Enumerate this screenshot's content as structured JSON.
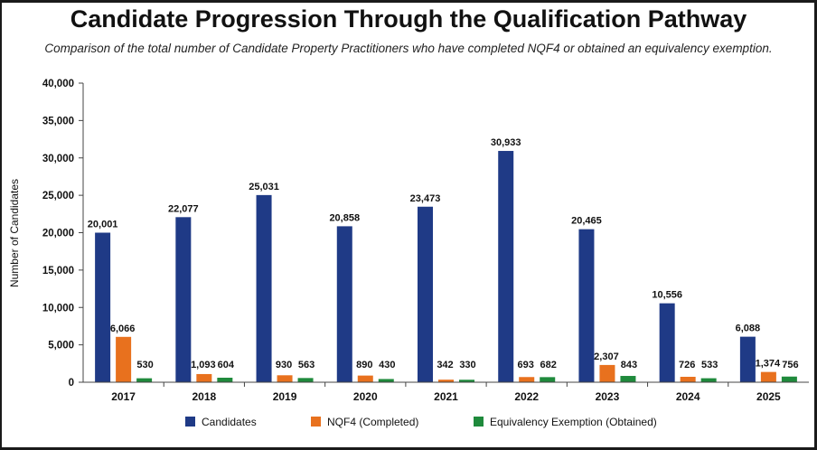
{
  "page": {
    "title": "Candidate Progression Through the Qualification Pathway",
    "subtitle": "Comparison of the total number of Candidate Property Practitioners who have completed NQF4 or obtained an equivalency exemption."
  },
  "colors": {
    "candidates": "#1F3A86",
    "nqf4": "#E8711E",
    "exemption": "#1F8A3C",
    "axis": "#444444",
    "grid": "#dddddd"
  },
  "chart_data": {
    "type": "bar",
    "title": "Candidate Progression Through the Qualification Pathway",
    "subtitle": "Comparison of the total number of Candidate Property Practitioners who have completed NQF4 or obtained an equivalency exemption.",
    "xlabel": "",
    "ylabel": "Number of Candidates",
    "ylim": [
      0,
      40000
    ],
    "yticks": [
      0,
      5000,
      10000,
      15000,
      20000,
      25000,
      30000,
      35000,
      40000
    ],
    "ytick_labels": [
      "0",
      "5,000",
      "10,000",
      "15,000",
      "20,000",
      "25,000",
      "30,000",
      "35,000",
      "40,000"
    ],
    "grid": false,
    "legend_position": "bottom",
    "categories": [
      "2017",
      "2018",
      "2019",
      "2020",
      "2021",
      "2022",
      "2023",
      "2024",
      "2025"
    ],
    "series": [
      {
        "name": "Candidates",
        "values": [
          20001,
          22077,
          25031,
          20858,
          23473,
          30933,
          20465,
          10556,
          6088
        ],
        "labels": [
          "20,001",
          "22,077",
          "25,031",
          "20,858",
          "23,473",
          "30,933",
          "20,465",
          "10,556",
          "6,088"
        ]
      },
      {
        "name": "NQF4 (Completed)",
        "values": [
          6066,
          1093,
          930,
          890,
          342,
          693,
          2307,
          726,
          1374
        ],
        "labels": [
          "6,066",
          "1,093",
          "930",
          "890",
          "342",
          "693",
          "2,307",
          "726",
          "1,374"
        ]
      },
      {
        "name": "Equivalency Exemption (Obtained)",
        "values": [
          530,
          604,
          563,
          430,
          330,
          682,
          843,
          533,
          756
        ],
        "labels": [
          "530",
          "604",
          "563",
          "430",
          "330",
          "682",
          "843",
          "533",
          "756"
        ]
      }
    ]
  }
}
